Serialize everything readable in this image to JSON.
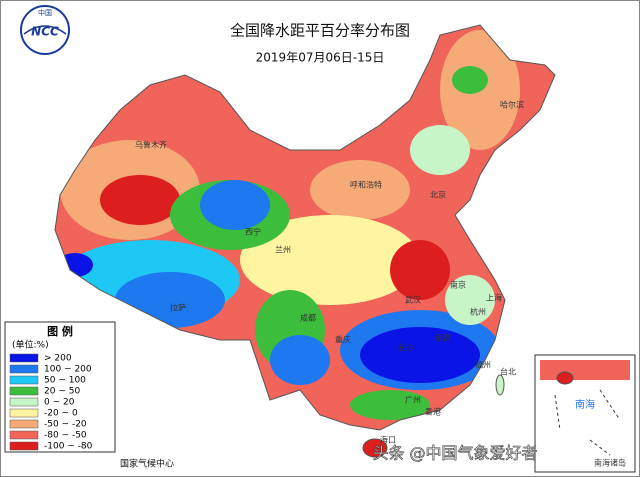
{
  "header": {
    "title": "全国降水距平百分率分布图",
    "subtitle": "2019年07月06日-15日",
    "logo_top": "中国",
    "logo_main": "NCC"
  },
  "legend": {
    "title": "图 例",
    "unit": "(单位:%)",
    "items": [
      {
        "label": "> 200",
        "color": "#0a14e6"
      },
      {
        "label": "100 ~ 200",
        "color": "#1e78f0"
      },
      {
        "label": "50 ~ 100",
        "color": "#1ec8f5"
      },
      {
        "label": "20 ~ 50",
        "color": "#3cbe3c"
      },
      {
        "label": "0 ~ 20",
        "color": "#c8f5c8"
      },
      {
        "label": "-20 ~ 0",
        "color": "#fff5a0"
      },
      {
        "label": "-50 ~ -20",
        "color": "#f5aa78"
      },
      {
        "label": "-80 ~ -50",
        "color": "#f0645a"
      },
      {
        "label": "-100 ~ -80",
        "color": "#dc1e1e"
      }
    ]
  },
  "cities": [
    "乌鲁木齐",
    "拉萨",
    "西宁",
    "兰州",
    "成都",
    "重庆",
    "武汉",
    "长沙",
    "南昌",
    "杭州",
    "上海",
    "南京",
    "北京",
    "呼和浩特",
    "哈尔滨",
    "广州",
    "香港",
    "海口",
    "台北",
    "福州"
  ],
  "inset": {
    "sea": "南海",
    "islands": "南海诸岛"
  },
  "source": "国家气候中心",
  "watermark": "头条 @中国气象爱好者"
}
